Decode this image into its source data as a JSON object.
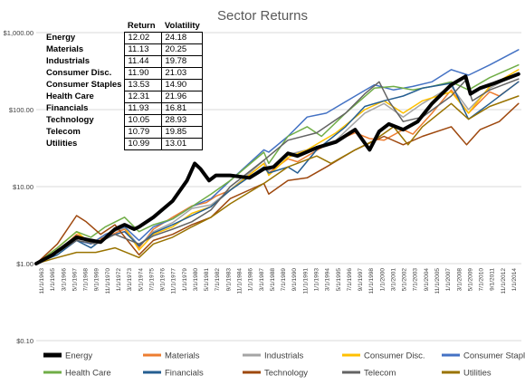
{
  "chart_data": {
    "type": "line",
    "title": "Sector Returns",
    "y_scale": "log",
    "ylim": [
      0.1,
      1000
    ],
    "y_ticks": [
      "$0.10",
      "$1.00",
      "$10.00",
      "$100.00",
      "$1,000.00"
    ],
    "x_tick_labels": [
      "11/1/1963",
      "1/1/1965",
      "3/1/1966",
      "5/1/1967",
      "7/1/1968",
      "9/1/1969",
      "11/1/1970",
      "1/1/1972",
      "3/1/1973",
      "5/1/1974",
      "7/1/1975",
      "9/1/1976",
      "11/1/1977",
      "1/1/1979",
      "3/1/1980",
      "5/1/1981",
      "7/1/1982",
      "9/1/1983",
      "11/1/1984",
      "1/1/1986",
      "3/1/1987",
      "5/1/1988",
      "7/1/1989",
      "9/1/1990",
      "11/1/1991",
      "1/1/1993",
      "3/1/1994",
      "5/1/1995",
      "7/1/1996",
      "9/1/1997",
      "11/1/1998",
      "1/1/2000",
      "3/1/2001",
      "5/1/2002",
      "7/1/2003",
      "9/1/2004",
      "11/1/2005",
      "1/1/2007",
      "3/1/2008",
      "5/1/2009",
      "7/1/2010",
      "9/1/2011",
      "11/1/2012",
      "1/1/2014"
    ],
    "x_range": [
      1963.8,
      2014.3
    ],
    "grid": true,
    "legend_position": "bottom",
    "table": {
      "headers": [
        "",
        "Return",
        "Volatility"
      ],
      "rows": [
        {
          "name": "Energy",
          "return": "12.02",
          "volatility": "24.18"
        },
        {
          "name": "Materials",
          "return": "11.13",
          "volatility": "20.25"
        },
        {
          "name": "Industrials",
          "return": "11.44",
          "volatility": "19.78"
        },
        {
          "name": "Consumer Disc.",
          "return": "11.90",
          "volatility": "21.03"
        },
        {
          "name": "Consumer Staples",
          "return": "13.53",
          "volatility": "14.90"
        },
        {
          "name": "Health Care",
          "return": "12.31",
          "volatility": "21.96"
        },
        {
          "name": "Financials",
          "return": "11.93",
          "volatility": "16.81"
        },
        {
          "name": "Technology",
          "return": "10.05",
          "volatility": "28.93"
        },
        {
          "name": "Telecom",
          "return": "10.79",
          "volatility": "19.85"
        },
        {
          "name": "Utilities",
          "return": "10.99",
          "volatility": "13.01"
        }
      ]
    },
    "series": [
      {
        "name": "Energy",
        "color": "#000000",
        "width": 4,
        "points": [
          [
            1963.8,
            1.0
          ],
          [
            1965.5,
            1.3
          ],
          [
            1966.5,
            1.6
          ],
          [
            1968,
            2.2
          ],
          [
            1969.5,
            2.0
          ],
          [
            1970.5,
            1.9
          ],
          [
            1972,
            2.8
          ],
          [
            1973,
            3.2
          ],
          [
            1974,
            2.8
          ],
          [
            1974.5,
            3.0
          ],
          [
            1976,
            4.0
          ],
          [
            1978,
            6.5
          ],
          [
            1979.5,
            12
          ],
          [
            1980.3,
            20
          ],
          [
            1980.9,
            17
          ],
          [
            1981.8,
            12
          ],
          [
            1982.5,
            14
          ],
          [
            1984,
            14
          ],
          [
            1986,
            13
          ],
          [
            1987.5,
            17
          ],
          [
            1988.5,
            18
          ],
          [
            1990,
            27
          ],
          [
            1991,
            25
          ],
          [
            1993,
            32
          ],
          [
            1995,
            38
          ],
          [
            1997,
            55
          ],
          [
            1998.5,
            30
          ],
          [
            1999.5,
            52
          ],
          [
            2000.5,
            65
          ],
          [
            2002,
            55
          ],
          [
            2003.5,
            70
          ],
          [
            2005,
            120
          ],
          [
            2007,
            210
          ],
          [
            2008.5,
            270
          ],
          [
            2009,
            160
          ],
          [
            2010,
            190
          ],
          [
            2011.5,
            220
          ],
          [
            2014,
            290
          ]
        ]
      },
      {
        "name": "Materials",
        "color": "#ed7d31",
        "width": 1.5,
        "points": [
          [
            1963.8,
            1.0
          ],
          [
            1966,
            1.4
          ],
          [
            1968,
            2.4
          ],
          [
            1969.5,
            1.9
          ],
          [
            1971,
            2.2
          ],
          [
            1973,
            2.8
          ],
          [
            1974.5,
            1.6
          ],
          [
            1976,
            2.8
          ],
          [
            1978,
            4.0
          ],
          [
            1980,
            5.6
          ],
          [
            1981.5,
            6.2
          ],
          [
            1982.5,
            7.5
          ],
          [
            1984,
            9
          ],
          [
            1987.5,
            20
          ],
          [
            1988,
            15
          ],
          [
            1990,
            23
          ],
          [
            1991,
            21
          ],
          [
            1994,
            35
          ],
          [
            1997,
            50
          ],
          [
            1998.5,
            42
          ],
          [
            2000,
            40
          ],
          [
            2002,
            55
          ],
          [
            2003,
            48
          ],
          [
            2005,
            90
          ],
          [
            2007,
            180
          ],
          [
            2008.8,
            90
          ],
          [
            2011,
            170
          ],
          [
            2012,
            150
          ],
          [
            2014,
            230
          ]
        ]
      },
      {
        "name": "Industrials",
        "color": "#a5a5a5",
        "width": 1.5,
        "points": [
          [
            1963.8,
            1.0
          ],
          [
            1966,
            1.5
          ],
          [
            1968,
            2.3
          ],
          [
            1969.5,
            1.8
          ],
          [
            1971,
            2.4
          ],
          [
            1973,
            2.9
          ],
          [
            1974.5,
            1.7
          ],
          [
            1976,
            2.6
          ],
          [
            1978,
            3.4
          ],
          [
            1980,
            5.2
          ],
          [
            1982,
            5.8
          ],
          [
            1984,
            9
          ],
          [
            1987.5,
            22
          ],
          [
            1988,
            16
          ],
          [
            1990,
            26
          ],
          [
            1992,
            30
          ],
          [
            1995,
            40
          ],
          [
            1998,
            90
          ],
          [
            2000,
            120
          ],
          [
            2002,
            80
          ],
          [
            2004,
            120
          ],
          [
            2007,
            200
          ],
          [
            2008.8,
            100
          ],
          [
            2011,
            190
          ],
          [
            2014,
            300
          ]
        ]
      },
      {
        "name": "Consumer Disc.",
        "color": "#ffc000",
        "width": 1.5,
        "points": [
          [
            1963.8,
            1.0
          ],
          [
            1966,
            1.6
          ],
          [
            1968,
            2.6
          ],
          [
            1969.5,
            1.8
          ],
          [
            1971,
            2.4
          ],
          [
            1973,
            3.0
          ],
          [
            1974.5,
            1.5
          ],
          [
            1976,
            2.4
          ],
          [
            1978,
            3.0
          ],
          [
            1980,
            4.5
          ],
          [
            1982,
            5.5
          ],
          [
            1984,
            9
          ],
          [
            1987.5,
            20
          ],
          [
            1988,
            14
          ],
          [
            1990,
            24
          ],
          [
            1992,
            30
          ],
          [
            1995,
            50
          ],
          [
            1998,
            100
          ],
          [
            2000,
            130
          ],
          [
            2002,
            90
          ],
          [
            2004,
            130
          ],
          [
            2007,
            170
          ],
          [
            2008.8,
            90
          ],
          [
            2011,
            200
          ],
          [
            2014,
            330
          ]
        ]
      },
      {
        "name": "Consumer Staples",
        "color": "#4472c4",
        "width": 1.5,
        "points": [
          [
            1963.8,
            1.0
          ],
          [
            1966,
            1.4
          ],
          [
            1968,
            2.0
          ],
          [
            1969.5,
            1.8
          ],
          [
            1971,
            2.4
          ],
          [
            1973,
            3.0
          ],
          [
            1974.5,
            2.0
          ],
          [
            1976,
            3.0
          ],
          [
            1978,
            3.8
          ],
          [
            1980,
            5.5
          ],
          [
            1982,
            7
          ],
          [
            1984,
            12
          ],
          [
            1987.5,
            30
          ],
          [
            1988,
            28
          ],
          [
            1990,
            45
          ],
          [
            1992,
            80
          ],
          [
            1994,
            90
          ],
          [
            1997,
            150
          ],
          [
            1999,
            210
          ],
          [
            2001,
            180
          ],
          [
            2003,
            200
          ],
          [
            2005,
            230
          ],
          [
            2007,
            330
          ],
          [
            2008.8,
            280
          ],
          [
            2011,
            380
          ],
          [
            2014,
            600
          ]
        ]
      },
      {
        "name": "Health Care",
        "color": "#70ad47",
        "width": 1.5,
        "points": [
          [
            1963.8,
            1.0
          ],
          [
            1966,
            1.6
          ],
          [
            1968,
            2.6
          ],
          [
            1969.5,
            2.2
          ],
          [
            1971,
            3.0
          ],
          [
            1973,
            4.0
          ],
          [
            1974.5,
            2.6
          ],
          [
            1976,
            3.2
          ],
          [
            1978,
            3.8
          ],
          [
            1980,
            5.5
          ],
          [
            1982,
            8
          ],
          [
            1984,
            12
          ],
          [
            1987.5,
            28
          ],
          [
            1988,
            20
          ],
          [
            1990,
            45
          ],
          [
            1992,
            60
          ],
          [
            1993.5,
            45
          ],
          [
            1996,
            90
          ],
          [
            1999,
            190
          ],
          [
            2001,
            200
          ],
          [
            2003,
            180
          ],
          [
            2005,
            200
          ],
          [
            2007,
            230
          ],
          [
            2008.8,
            180
          ],
          [
            2011,
            260
          ],
          [
            2014,
            380
          ]
        ]
      },
      {
        "name": "Financials",
        "color": "#255e91",
        "width": 1.5,
        "points": [
          [
            1963.8,
            1.0
          ],
          [
            1966,
            1.3
          ],
          [
            1968,
            2.0
          ],
          [
            1969.5,
            1.6
          ],
          [
            1971,
            2.2
          ],
          [
            1973,
            2.6
          ],
          [
            1974.5,
            1.7
          ],
          [
            1976,
            2.5
          ],
          [
            1978,
            3.2
          ],
          [
            1980,
            4.2
          ],
          [
            1982,
            5.5
          ],
          [
            1984,
            9
          ],
          [
            1987.5,
            18
          ],
          [
            1988,
            15
          ],
          [
            1990,
            18
          ],
          [
            1991,
            15
          ],
          [
            1993,
            30
          ],
          [
            1996,
            60
          ],
          [
            1998,
            110
          ],
          [
            2000,
            130
          ],
          [
            2002,
            150
          ],
          [
            2004,
            190
          ],
          [
            2007,
            220
          ],
          [
            2008.8,
            75
          ],
          [
            2011,
            120
          ],
          [
            2014,
            230
          ]
        ]
      },
      {
        "name": "Technology",
        "color": "#9e480e",
        "width": 1.5,
        "points": [
          [
            1963.8,
            1.0
          ],
          [
            1966,
            1.8
          ],
          [
            1968,
            4.2
          ],
          [
            1969,
            3.5
          ],
          [
            1970.5,
            2.4
          ],
          [
            1972,
            3.2
          ],
          [
            1974.5,
            1.3
          ],
          [
            1976,
            2.0
          ],
          [
            1978,
            2.4
          ],
          [
            1980,
            3.2
          ],
          [
            1982,
            4.0
          ],
          [
            1984,
            7
          ],
          [
            1987.5,
            11
          ],
          [
            1988,
            8
          ],
          [
            1990,
            12
          ],
          [
            1992,
            13
          ],
          [
            1994,
            18
          ],
          [
            1997,
            30
          ],
          [
            2000,
            45
          ],
          [
            2002,
            35
          ],
          [
            2004,
            45
          ],
          [
            2007,
            60
          ],
          [
            2008.6,
            35
          ],
          [
            2010,
            55
          ],
          [
            2012,
            70
          ],
          [
            2014,
            120
          ]
        ]
      },
      {
        "name": "Telecom",
        "color": "#636363",
        "width": 1.5,
        "points": [
          [
            1963.8,
            1.0
          ],
          [
            1966,
            1.4
          ],
          [
            1968,
            2.0
          ],
          [
            1970,
            1.8
          ],
          [
            1972,
            2.4
          ],
          [
            1974.5,
            1.8
          ],
          [
            1976,
            2.3
          ],
          [
            1978,
            2.8
          ],
          [
            1980,
            3.5
          ],
          [
            1982,
            5
          ],
          [
            1984,
            10
          ],
          [
            1987.5,
            22
          ],
          [
            1990,
            40
          ],
          [
            1993,
            50
          ],
          [
            1996,
            90
          ],
          [
            1998,
            160
          ],
          [
            1999.5,
            230
          ],
          [
            2000.5,
            130
          ],
          [
            2002,
            70
          ],
          [
            2004,
            80
          ],
          [
            2007,
            150
          ],
          [
            2008.5,
            240
          ],
          [
            2009.2,
            130
          ],
          [
            2011,
            180
          ],
          [
            2014,
            250
          ]
        ]
      },
      {
        "name": "Utilities",
        "color": "#997300",
        "width": 1.5,
        "points": [
          [
            1963.8,
            1.0
          ],
          [
            1966,
            1.2
          ],
          [
            1968,
            1.4
          ],
          [
            1970,
            1.4
          ],
          [
            1972,
            1.6
          ],
          [
            1974.5,
            1.2
          ],
          [
            1976,
            1.8
          ],
          [
            1978,
            2.2
          ],
          [
            1980,
            3.0
          ],
          [
            1982,
            4.0
          ],
          [
            1984,
            6
          ],
          [
            1987.5,
            11
          ],
          [
            1990,
            18
          ],
          [
            1993,
            25
          ],
          [
            1994.5,
            20
          ],
          [
            1997,
            30
          ],
          [
            1999,
            40
          ],
          [
            2001,
            60
          ],
          [
            2002.5,
            35
          ],
          [
            2004,
            60
          ],
          [
            2007,
            120
          ],
          [
            2008.8,
            75
          ],
          [
            2011,
            110
          ],
          [
            2014,
            150
          ]
        ]
      }
    ]
  }
}
